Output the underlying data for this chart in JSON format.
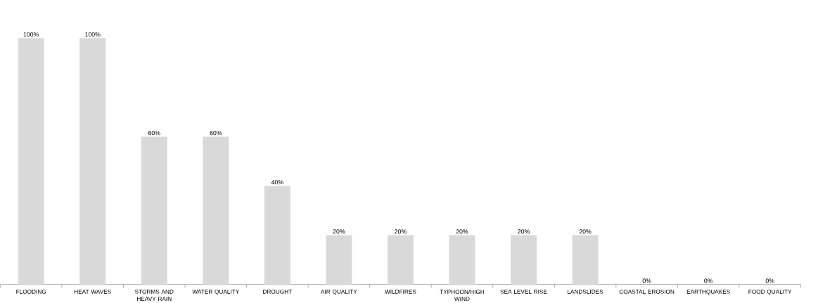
{
  "chart_data": {
    "type": "bar",
    "categories": [
      "FLOODING",
      "HEAT WAVES",
      "STORMS AND HEAVY RAIN",
      "WATER QUALITY",
      "DROUGHT",
      "AIR QUALITY",
      "WILDFIRES",
      "TYPHOON/HIGH WIND",
      "SEA LEVEL RISE",
      "LANDSLIDES",
      "COASTAL EROSION",
      "EARTHQUAKES",
      "FOOD QUALITY"
    ],
    "values": [
      100,
      100,
      60,
      60,
      40,
      20,
      20,
      20,
      20,
      20,
      0,
      0,
      0
    ],
    "value_labels": [
      "100%",
      "100%",
      "60%",
      "60%",
      "40%",
      "20%",
      "20%",
      "20%",
      "20%",
      "20%",
      "0%",
      "0%",
      "0%"
    ],
    "color": "#d9d9d9",
    "ylim": [
      0,
      100
    ],
    "tick_labels": "x"
  }
}
